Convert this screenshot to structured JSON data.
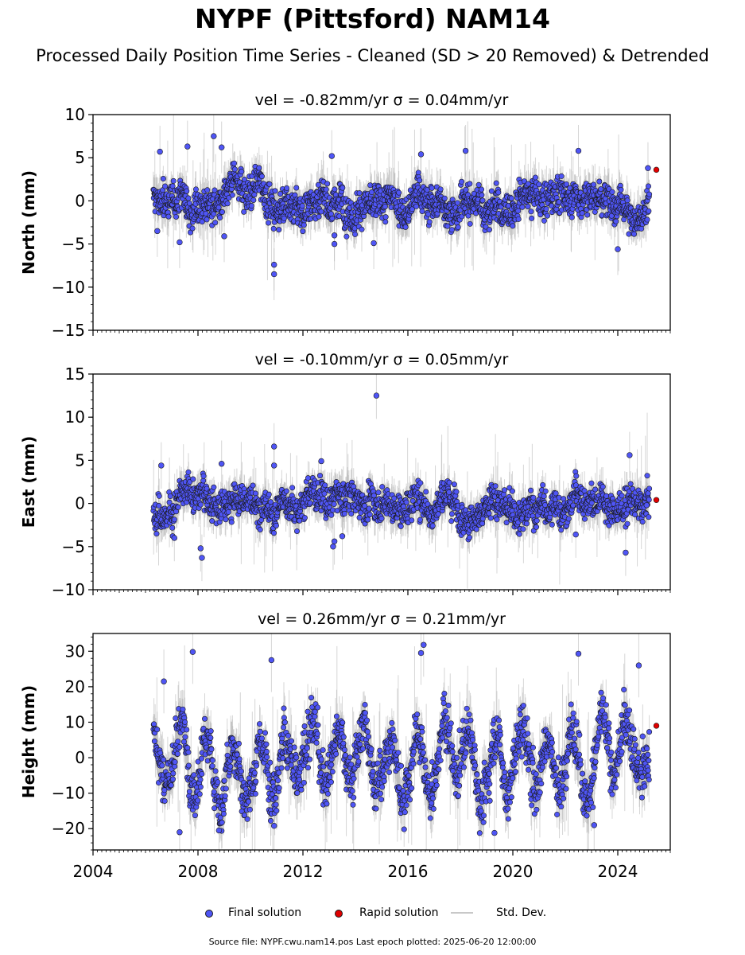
{
  "title": "NYPF (Pittsford) NAM14",
  "subtitle": "Processed Daily Position Time Series - Cleaned (SD > 20 Removed) & Detrended",
  "legend": {
    "final": "Final solution",
    "rapid": "Rapid solution",
    "std": "Std. Dev."
  },
  "footer": "Source file: NYPF.cwu.nam14.pos  Last epoch plotted: 2025-06-20 12:00:00",
  "colors": {
    "final": "#4f55f5",
    "rapid": "#e00000",
    "std": "#b4b4b4",
    "edge": "#1a1a1a"
  },
  "chart_data": [
    {
      "type": "scatter",
      "component": "north",
      "panel_title": "vel = -0.82mm/yr   σ = 0.04mm/yr",
      "ylabel": "North (mm)",
      "xlim": [
        2004,
        2026
      ],
      "ylim": [
        -15,
        10
      ],
      "yticks": [
        -15,
        -10,
        -5,
        0,
        5,
        10
      ],
      "xticks": [
        2004,
        2008,
        2012,
        2016,
        2020,
        2024
      ],
      "show_x_tick_labels": false,
      "spread": 1.3,
      "sd_len": 2.0,
      "annual_amplitude": 0.4,
      "data_span": [
        2006.3,
        2025.2
      ],
      "outliers": [
        {
          "x": 2006.55,
          "y": 5.7
        },
        {
          "x": 2007.6,
          "y": 6.3
        },
        {
          "x": 2008.6,
          "y": 7.5
        },
        {
          "x": 2008.9,
          "y": 6.2
        },
        {
          "x": 2013.1,
          "y": 5.2
        },
        {
          "x": 2016.5,
          "y": 5.4
        },
        {
          "x": 2018.2,
          "y": 5.8
        },
        {
          "x": 2022.5,
          "y": 5.8
        },
        {
          "x": 2006.45,
          "y": -3.5
        },
        {
          "x": 2007.3,
          "y": -4.8
        },
        {
          "x": 2009.0,
          "y": -4.1
        },
        {
          "x": 2010.9,
          "y": -7.4
        },
        {
          "x": 2010.9,
          "y": -8.5
        },
        {
          "x": 2013.2,
          "y": -5.0
        },
        {
          "x": 2013.2,
          "y": -4.0
        },
        {
          "x": 2014.7,
          "y": -4.9
        },
        {
          "x": 2024.0,
          "y": -5.6
        },
        {
          "x": 2025.15,
          "y": 3.8
        }
      ],
      "rapid": [
        {
          "x": 2025.47,
          "y": 3.6
        }
      ]
    },
    {
      "type": "scatter",
      "component": "east",
      "panel_title": "vel = -0.10mm/yr   σ = 0.05mm/yr",
      "ylabel": "East (mm)",
      "xlim": [
        2004,
        2026
      ],
      "ylim": [
        -10,
        15
      ],
      "yticks": [
        -10,
        -5,
        0,
        5,
        10,
        15
      ],
      "xticks": [
        2004,
        2008,
        2012,
        2016,
        2020,
        2024
      ],
      "show_x_tick_labels": false,
      "spread": 1.2,
      "sd_len": 1.8,
      "annual_amplitude": 0.3,
      "data_span": [
        2006.3,
        2025.2
      ],
      "outliers": [
        {
          "x": 2014.8,
          "y": 12.5
        },
        {
          "x": 2010.9,
          "y": 6.6
        },
        {
          "x": 2010.9,
          "y": 4.4
        },
        {
          "x": 2006.6,
          "y": 4.4
        },
        {
          "x": 2008.9,
          "y": 4.6
        },
        {
          "x": 2024.45,
          "y": 5.6
        },
        {
          "x": 2012.7,
          "y": 4.9
        },
        {
          "x": 2007.1,
          "y": -4.0
        },
        {
          "x": 2008.1,
          "y": -5.2
        },
        {
          "x": 2008.15,
          "y": -6.3
        },
        {
          "x": 2013.15,
          "y": -5.0
        },
        {
          "x": 2013.2,
          "y": -4.4
        },
        {
          "x": 2013.5,
          "y": -3.8
        },
        {
          "x": 2024.3,
          "y": -5.7
        },
        {
          "x": 2022.4,
          "y": -3.6
        },
        {
          "x": 2025.1,
          "y": -0.2
        }
      ],
      "rapid": [
        {
          "x": 2025.47,
          "y": 0.4
        }
      ]
    },
    {
      "type": "scatter",
      "component": "height",
      "panel_title": "vel = 0.26mm/yr   σ = 0.21mm/yr",
      "ylabel": "Height (mm)",
      "xlim": [
        2004,
        2026
      ],
      "ylim": [
        -26,
        35
      ],
      "yticks": [
        -20,
        -10,
        0,
        10,
        20,
        30
      ],
      "xticks": [
        2004,
        2008,
        2012,
        2016,
        2020,
        2024
      ],
      "show_x_tick_labels": true,
      "spread": 4.5,
      "sd_len": 6.0,
      "annual_amplitude": 8.0,
      "data_span": [
        2006.3,
        2025.2
      ],
      "outliers": [
        {
          "x": 2007.8,
          "y": 29.8
        },
        {
          "x": 2010.8,
          "y": 27.5
        },
        {
          "x": 2016.6,
          "y": 31.8
        },
        {
          "x": 2016.5,
          "y": 29.5
        },
        {
          "x": 2022.5,
          "y": 29.3
        },
        {
          "x": 2024.8,
          "y": 26.0
        },
        {
          "x": 2006.7,
          "y": 21.5
        },
        {
          "x": 2007.3,
          "y": -21.0
        },
        {
          "x": 2008.8,
          "y": -20.5
        },
        {
          "x": 2010.9,
          "y": -19.2
        },
        {
          "x": 2019.3,
          "y": -21.2
        },
        {
          "x": 2023.1,
          "y": -19.0
        },
        {
          "x": 2024.95,
          "y": 6.0
        }
      ],
      "rapid": [
        {
          "x": 2025.47,
          "y": 9.0
        }
      ]
    }
  ]
}
